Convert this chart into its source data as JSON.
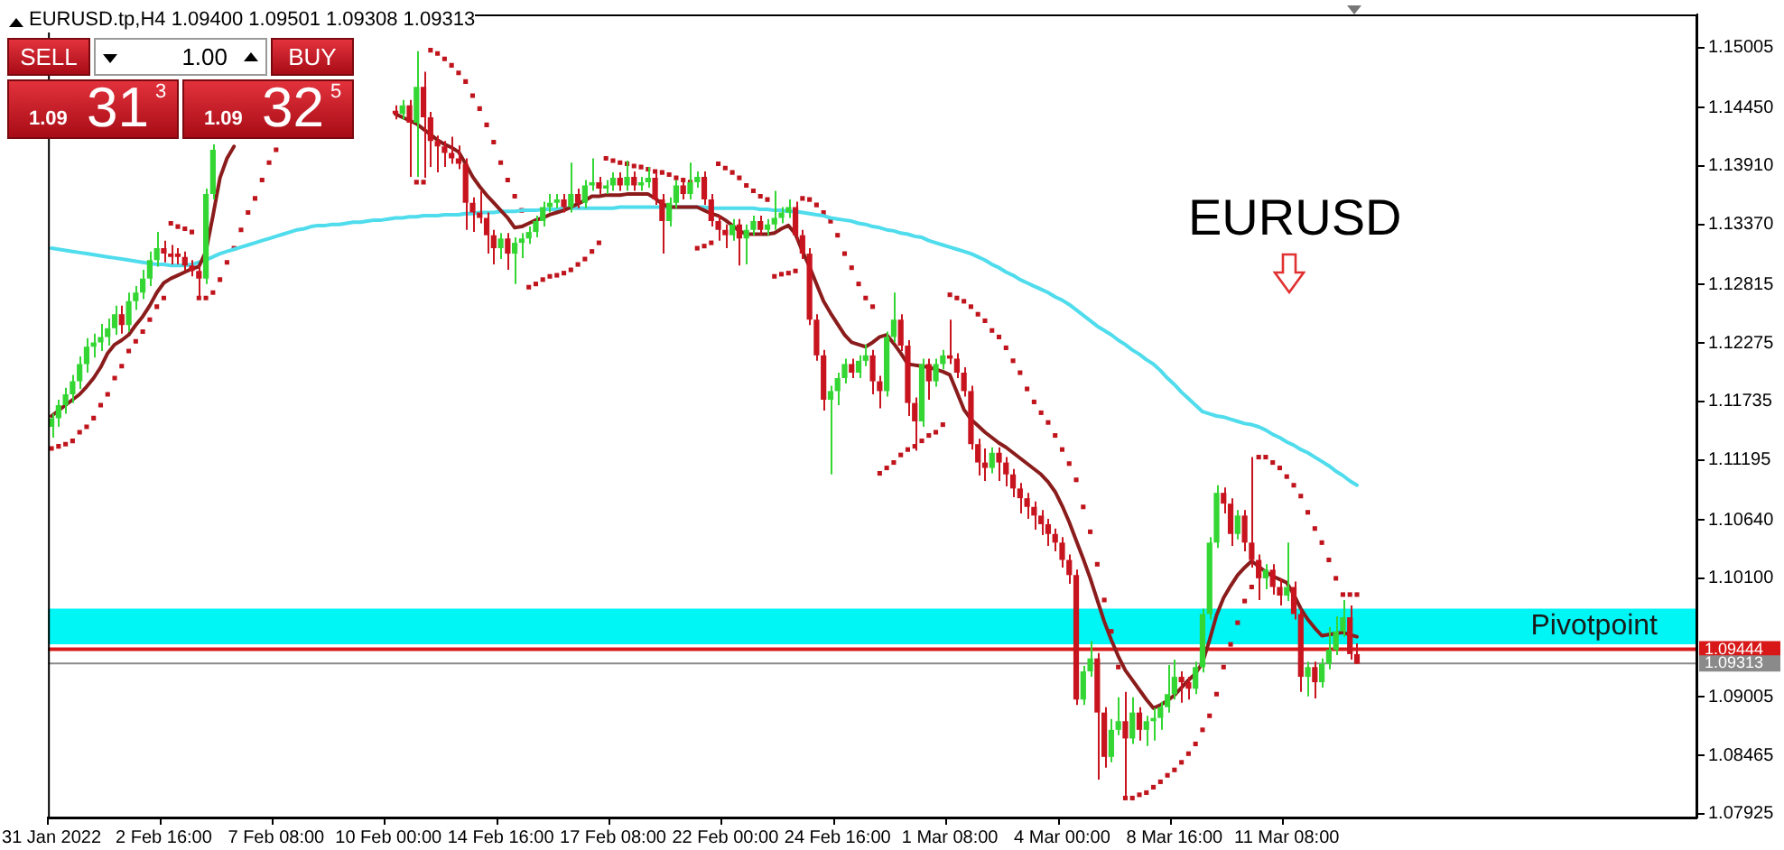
{
  "chart_data": {
    "type": "candlestick",
    "categories": [
      "31 Jan 2022",
      null,
      null,
      null,
      null,
      null,
      null,
      null,
      null,
      null,
      null,
      null,
      null,
      null,
      null,
      null,
      "2 Feb 16:00",
      null,
      null,
      null,
      null,
      null,
      null,
      null,
      null,
      null,
      null,
      null,
      null,
      null,
      null,
      null,
      "7 Feb 08:00",
      null,
      null,
      null,
      null,
      null,
      null,
      null,
      null,
      null,
      null,
      null,
      null,
      null,
      null,
      null,
      "10 Feb 00:00",
      null,
      null,
      null,
      null,
      null,
      null,
      null,
      null,
      null,
      null,
      null,
      null,
      null,
      null,
      null,
      "14 Feb 16:00",
      null,
      null,
      null,
      null,
      null,
      null,
      null,
      null,
      null,
      null,
      null,
      null,
      null,
      null,
      null,
      "17 Feb 08:00",
      null,
      null,
      null,
      null,
      null,
      null,
      null,
      null,
      null,
      null,
      null,
      null,
      null,
      null,
      null,
      "22 Feb 00:00",
      null,
      null,
      null,
      null,
      null,
      null,
      null,
      null,
      null,
      null,
      null,
      null,
      null,
      null,
      null,
      "24 Feb 16:00",
      null,
      null,
      null,
      null,
      null,
      null,
      null,
      null,
      null,
      null,
      null,
      null,
      null,
      null,
      null,
      "1 Mar 08:00",
      null,
      null,
      null,
      null,
      null,
      null,
      null,
      null,
      null,
      null,
      null,
      null,
      null,
      null,
      null,
      "4 Mar 00:00",
      null,
      null,
      null,
      null,
      null,
      null,
      null,
      null,
      null,
      null,
      null,
      null,
      null,
      null,
      null,
      "8 Mar 16:00",
      null,
      null,
      null,
      null,
      null,
      null,
      null,
      null,
      null,
      null,
      null,
      null,
      null,
      null,
      null,
      "11 Mar 08:00",
      null,
      null,
      null,
      null,
      null,
      null,
      null,
      null,
      null,
      null,
      null,
      null,
      null,
      null,
      null,
      null,
      null,
      null,
      null,
      null,
      null,
      null,
      null,
      null,
      null,
      null,
      null,
      null,
      null,
      null,
      null,
      null,
      null,
      null,
      null,
      null,
      null,
      null,
      null,
      null,
      null,
      null,
      null,
      null,
      null,
      null,
      null,
      null,
      null,
      null,
      null,
      null,
      null,
      null,
      null,
      null,
      null,
      null
    ],
    "ohlc": [
      [
        1.115,
        1.1162,
        1.114,
        1.1158
      ],
      [
        1.1158,
        1.1175,
        1.115,
        1.117
      ],
      [
        1.117,
        1.1186,
        1.1162,
        1.118
      ],
      [
        1.118,
        1.1198,
        1.1172,
        1.1192
      ],
      [
        1.1192,
        1.1215,
        1.1185,
        1.1208
      ],
      [
        1.1208,
        1.1232,
        1.12,
        1.1224
      ],
      [
        1.1224,
        1.1236,
        1.1214,
        1.1228
      ],
      [
        1.1228,
        1.1245,
        1.122,
        1.1233
      ],
      [
        1.1233,
        1.125,
        1.1225,
        1.1241
      ],
      [
        1.1241,
        1.1262,
        1.1235,
        1.1254
      ],
      [
        1.1254,
        1.1262,
        1.1236,
        1.1244
      ],
      [
        1.1244,
        1.1274,
        1.1238,
        1.1266
      ],
      [
        1.1266,
        1.128,
        1.1258,
        1.1274
      ],
      [
        1.1274,
        1.1295,
        1.1268,
        1.1287
      ],
      [
        1.1287,
        1.1312,
        1.128,
        1.1304
      ],
      [
        1.1304,
        1.133,
        1.1298,
        1.1315
      ],
      [
        1.1315,
        1.1322,
        1.1302,
        1.131
      ],
      [
        1.131,
        1.1318,
        1.13,
        1.1307
      ],
      [
        1.131,
        1.1315,
        1.13,
        1.1307
      ],
      [
        1.1307,
        1.1312,
        1.1294,
        1.1299
      ],
      [
        1.1299,
        1.1304,
        1.1289,
        1.1294
      ],
      [
        1.1294,
        1.1299,
        1.1269,
        1.1287
      ],
      [
        1.1287,
        1.137,
        1.1282,
        1.1365
      ],
      [
        1.1365,
        1.1411,
        1.136,
        1.1406
      ],
      null,
      null,
      null,
      null,
      null,
      null,
      null,
      null,
      null,
      null,
      null,
      null,
      null,
      null,
      null,
      null,
      null,
      null,
      null,
      null,
      null,
      null,
      null,
      null,
      null,
      [
        1.1442,
        1.1447,
        1.1434,
        1.1439
      ],
      [
        1.1439,
        1.1452,
        1.1434,
        1.1447
      ],
      [
        1.1447,
        1.1452,
        1.1381,
        1.1431
      ],
      [
        1.1431,
        1.1497,
        1.1381,
        1.1464
      ],
      [
        1.1464,
        1.1478,
        1.138,
        1.1436
      ],
      [
        1.1436,
        1.1441,
        1.139,
        1.1414
      ],
      [
        1.1414,
        1.1419,
        1.1385,
        1.1409
      ],
      [
        1.1409,
        1.1414,
        1.139,
        1.1403
      ],
      [
        1.1403,
        1.1418,
        1.1393,
        1.1398
      ],
      [
        1.1398,
        1.141,
        1.1388,
        1.1393
      ],
      [
        1.1393,
        1.1398,
        1.1332,
        1.1357
      ],
      [
        1.1357,
        1.1362,
        1.133,
        1.1348
      ],
      [
        1.1348,
        1.1368,
        1.1338,
        1.1343
      ],
      [
        1.1343,
        1.1348,
        1.131,
        1.1327
      ],
      [
        1.1327,
        1.1332,
        1.13,
        1.1315
      ],
      [
        1.1315,
        1.1329,
        1.1305,
        1.1324
      ],
      [
        1.1324,
        1.1329,
        1.1295,
        1.131
      ],
      [
        1.131,
        1.1325,
        1.1282,
        1.132
      ],
      [
        1.132,
        1.1329,
        1.1306,
        1.1324
      ],
      [
        1.1324,
        1.1335,
        1.1319,
        1.133
      ],
      [
        1.133,
        1.1345,
        1.1325,
        1.134
      ],
      [
        1.134,
        1.1358,
        1.1335,
        1.1353
      ],
      [
        1.1353,
        1.1365,
        1.1348,
        1.1357
      ],
      [
        1.1357,
        1.1365,
        1.1352,
        1.136
      ],
      [
        1.136,
        1.1365,
        1.1348,
        1.1353
      ],
      [
        1.1353,
        1.1394,
        1.1348,
        1.1365
      ],
      [
        1.1365,
        1.137,
        1.1352,
        1.1357
      ],
      [
        1.1357,
        1.1378,
        1.1352,
        1.1373
      ],
      [
        1.1373,
        1.1398,
        1.1368,
        1.1376
      ],
      [
        1.1376,
        1.1381,
        1.1365,
        1.137
      ],
      [
        1.137,
        1.1378,
        1.1365,
        1.1373
      ],
      [
        1.1373,
        1.1385,
        1.1368,
        1.138
      ],
      [
        1.138,
        1.1385,
        1.1368,
        1.1373
      ],
      [
        1.1373,
        1.1396,
        1.1368,
        1.1381
      ],
      [
        1.1381,
        1.1386,
        1.1368,
        1.1373
      ],
      [
        1.1373,
        1.1381,
        1.1368,
        1.1376
      ],
      [
        1.1376,
        1.139,
        1.1371,
        1.138
      ],
      [
        1.138,
        1.1385,
        1.1355,
        1.136
      ],
      [
        1.136,
        1.1365,
        1.131,
        1.134
      ],
      [
        1.134,
        1.1362,
        1.1335,
        1.1357
      ],
      [
        1.1357,
        1.1378,
        1.1352,
        1.1373
      ],
      [
        1.1373,
        1.1378,
        1.136,
        1.1365
      ],
      [
        1.1365,
        1.1394,
        1.136,
        1.1376
      ],
      [
        1.1376,
        1.1386,
        1.1371,
        1.1381
      ],
      [
        1.1381,
        1.1386,
        1.1355,
        1.136
      ],
      [
        1.136,
        1.1365,
        1.1335,
        1.134
      ],
      [
        1.134,
        1.1345,
        1.1322,
        1.1332
      ],
      [
        1.1332,
        1.1337,
        1.1315,
        1.1327
      ],
      [
        1.1327,
        1.1342,
        1.1322,
        1.1337
      ],
      [
        1.1337,
        1.1342,
        1.1299,
        1.1324
      ],
      [
        1.1324,
        1.1337,
        1.13,
        1.1332
      ],
      [
        1.1332,
        1.1345,
        1.1327,
        1.134
      ],
      [
        1.134,
        1.1345,
        1.1327,
        1.1332
      ],
      [
        1.1332,
        1.1342,
        1.1327,
        1.1337
      ],
      [
        1.1337,
        1.1368,
        1.1332,
        1.1343
      ],
      [
        1.1343,
        1.1353,
        1.1338,
        1.1348
      ],
      [
        1.1348,
        1.136,
        1.1343,
        1.1353
      ],
      [
        1.1353,
        1.1358,
        1.1322,
        1.1327
      ],
      [
        1.1327,
        1.1332,
        1.1305,
        1.131
      ],
      [
        1.131,
        1.1315,
        1.1244,
        1.1249
      ],
      [
        1.1249,
        1.1254,
        1.1211,
        1.1216
      ],
      [
        1.1216,
        1.1221,
        1.1165,
        1.1175
      ],
      [
        1.1175,
        1.1188,
        1.1106,
        1.1183
      ],
      [
        1.1183,
        1.12,
        1.117,
        1.1195
      ],
      [
        1.1195,
        1.1213,
        1.119,
        1.1208
      ],
      [
        1.1208,
        1.1213,
        1.1195,
        1.12
      ],
      [
        1.12,
        1.1216,
        1.1195,
        1.1211
      ],
      [
        1.1211,
        1.1226,
        1.1206,
        1.1216
      ],
      [
        1.1216,
        1.1221,
        1.118,
        1.1192
      ],
      [
        1.1192,
        1.1197,
        1.1167,
        1.1183
      ],
      [
        1.1183,
        1.1238,
        1.1178,
        1.1233
      ],
      [
        1.1233,
        1.1274,
        1.1228,
        1.1249
      ],
      [
        1.1249,
        1.1254,
        1.122,
        1.1225
      ],
      [
        1.1225,
        1.123,
        1.116,
        1.1172
      ],
      [
        1.1172,
        1.1177,
        1.1128,
        1.1155
      ],
      [
        1.1155,
        1.1213,
        1.115,
        1.1208
      ],
      [
        1.1208,
        1.1213,
        1.1175,
        1.1192
      ],
      [
        1.1192,
        1.1213,
        1.1187,
        1.1208
      ],
      [
        1.1208,
        1.1221,
        1.1203,
        1.1216
      ],
      [
        1.1216,
        1.1249,
        1.1208,
        1.1213
      ],
      [
        1.1213,
        1.1218,
        1.1195,
        1.12
      ],
      [
        1.12,
        1.1205,
        1.1178,
        1.1183
      ],
      [
        1.1183,
        1.1188,
        1.1129,
        1.1134
      ],
      [
        1.1134,
        1.1139,
        1.1105,
        1.1117
      ],
      [
        1.1117,
        1.113,
        1.11,
        1.1112
      ],
      [
        1.1112,
        1.1131,
        1.1107,
        1.1126
      ],
      [
        1.1126,
        1.1131,
        1.11,
        1.1117
      ],
      [
        1.1117,
        1.1122,
        1.1095,
        1.1106
      ],
      [
        1.1106,
        1.1111,
        1.1085,
        1.1093
      ],
      [
        1.1093,
        1.1098,
        1.107,
        1.1084
      ],
      [
        1.1084,
        1.1089,
        1.1065,
        1.1076
      ],
      [
        1.1076,
        1.1081,
        1.1055,
        1.1068
      ],
      [
        1.1068,
        1.1073,
        1.105,
        1.106
      ],
      [
        1.106,
        1.1065,
        1.104,
        1.1051
      ],
      [
        1.1051,
        1.1056,
        1.1035,
        1.1043
      ],
      [
        1.1043,
        1.1048,
        1.102,
        1.1027
      ],
      [
        1.1027,
        1.1032,
        1.1005,
        1.1013
      ],
      [
        1.1013,
        1.1018,
        1.0893,
        1.0898
      ],
      [
        1.0898,
        1.0929,
        1.0893,
        1.0924
      ],
      [
        1.0924,
        1.0952,
        1.0919,
        1.0936
      ],
      [
        1.0936,
        1.0941,
        1.0824,
        1.0886
      ],
      [
        1.0886,
        1.0891,
        1.0835,
        1.0845
      ],
      [
        1.0845,
        1.088,
        1.084,
        1.087
      ],
      [
        1.087,
        1.09,
        1.0865,
        1.0878
      ],
      [
        1.0878,
        1.0905,
        1.0807,
        1.0862
      ],
      [
        1.0862,
        1.09,
        1.0857,
        1.0886
      ],
      [
        1.0886,
        1.0891,
        1.086,
        1.087
      ],
      [
        1.087,
        1.0883,
        1.0855,
        1.0878
      ],
      [
        1.0878,
        1.089,
        1.086,
        1.0881
      ],
      [
        1.0881,
        1.0896,
        1.087,
        1.0891
      ],
      [
        1.0891,
        1.093,
        1.0886,
        1.0903
      ],
      [
        1.0903,
        1.0935,
        1.0898,
        1.0919
      ],
      [
        1.0919,
        1.0924,
        1.0895,
        1.0914
      ],
      [
        1.0914,
        1.0919,
        1.0898,
        1.0908
      ],
      [
        1.0908,
        1.0933,
        1.0903,
        1.0928
      ],
      [
        1.0928,
        1.0982,
        1.0923,
        1.0977
      ],
      [
        1.0977,
        1.1048,
        1.0972,
        1.1043
      ],
      [
        1.1043,
        1.1096,
        1.1038,
        1.1089
      ],
      [
        1.1089,
        1.1094,
        1.107,
        1.1079
      ],
      [
        1.1079,
        1.1084,
        1.104,
        1.1051
      ],
      [
        1.1051,
        1.1073,
        1.1046,
        1.1068
      ],
      [
        1.1068,
        1.1073,
        1.1035,
        1.1043
      ],
      [
        1.1043,
        1.1122,
        1.102,
        1.1027
      ],
      [
        1.1027,
        1.1032,
        1.099,
        1.101
      ],
      [
        1.101,
        1.1023,
        1.1,
        1.1018
      ],
      [
        1.1018,
        1.1023,
        1.0995,
        1.1002
      ],
      [
        1.1002,
        1.101,
        1.0985,
        1.0994
      ],
      [
        1.0994,
        1.1043,
        1.0989,
        1.1002
      ],
      [
        1.1002,
        1.1007,
        1.0972,
        1.0977
      ],
      [
        1.0977,
        1.0982,
        1.0905,
        1.0919
      ],
      [
        1.0919,
        1.0933,
        1.0901,
        1.0928
      ],
      [
        1.0928,
        1.0933,
        1.0899,
        1.0914
      ],
      [
        1.0914,
        1.0936,
        1.0909,
        1.0931
      ],
      [
        1.0931,
        1.0965,
        1.0926,
        1.0944
      ],
      [
        1.0944,
        1.0975,
        1.0939,
        1.0961
      ],
      [
        1.0961,
        1.099,
        1.0956,
        1.0974
      ],
      [
        1.0974,
        1.0985,
        1.0935,
        1.094
      ],
      [
        1.094,
        1.095,
        1.0931,
        1.0931
      ],
      null,
      null,
      null,
      null,
      null,
      null,
      null,
      null,
      null,
      null,
      null,
      null,
      null,
      null,
      null,
      null,
      null,
      null,
      null,
      null,
      null,
      null,
      null,
      null,
      null,
      null,
      null,
      null,
      null,
      null,
      null,
      null,
      null,
      null,
      null,
      null,
      null,
      null,
      null,
      null,
      null,
      null,
      null,
      null,
      null,
      null,
      null,
      null
    ],
    "series": [
      {
        "type": "line",
        "color": "#8b1c1c",
        "values": [
          1.116,
          1.1165,
          1.117,
          1.1175,
          1.118,
          1.1187,
          1.1195,
          1.1205,
          1.1218,
          1.1226,
          1.123,
          1.1235,
          1.1244,
          1.1252,
          1.1262,
          1.1274,
          1.1283,
          1.1287,
          1.129,
          1.1293,
          1.1296,
          1.1298,
          1.1312,
          1.1345,
          1.138,
          1.1398,
          1.1409,
          null,
          null,
          null,
          null,
          null,
          null,
          null,
          null,
          null,
          null,
          null,
          null,
          null,
          null,
          null,
          null,
          null,
          null,
          null,
          null,
          null,
          null,
          1.1439,
          1.1436,
          1.1433,
          1.143,
          1.1425,
          1.142,
          1.1415,
          1.1411,
          1.1408,
          1.1404,
          1.1393,
          1.1381,
          1.1372,
          1.1364,
          1.1357,
          1.135,
          1.1343,
          1.1334,
          1.1335,
          1.1338,
          1.1341,
          1.1343,
          1.1346,
          1.1348,
          1.135,
          1.1353,
          1.1356,
          1.1359,
          1.1363,
          1.1363,
          1.1364,
          1.1364,
          1.1364,
          1.1365,
          1.1365,
          1.1365,
          1.1365,
          1.1361,
          1.1356,
          1.1353,
          1.1353,
          1.1353,
          1.1353,
          1.1353,
          1.135,
          1.1347,
          1.1345,
          1.1341,
          1.1336,
          1.1331,
          1.1328,
          1.1328,
          1.1328,
          1.1328,
          1.1329,
          1.1333,
          1.1336,
          1.1328,
          1.1312,
          1.1298,
          1.1282,
          1.1266,
          1.1255,
          1.1245,
          1.1235,
          1.1228,
          1.1226,
          1.1224,
          1.1228,
          1.1233,
          1.1235,
          1.1227,
          1.1218,
          1.1208,
          1.1207,
          1.1206,
          1.1205,
          1.1203,
          1.1201,
          1.1198,
          1.1182,
          1.1166,
          1.1157,
          1.1151,
          1.1145,
          1.114,
          1.1135,
          1.1131,
          1.1126,
          1.1121,
          1.1116,
          1.1111,
          1.1106,
          1.1099,
          1.109,
          1.1077,
          1.1062,
          1.1045,
          1.1028,
          1.101,
          1.099,
          1.097,
          1.0953,
          1.0938,
          1.0925,
          1.0916,
          1.0907,
          1.0898,
          1.089,
          1.0893,
          1.0897,
          1.0902,
          1.0909,
          1.0916,
          1.0922,
          1.0932,
          1.0953,
          1.0976,
          1.0992,
          1.1003,
          1.1013,
          1.102,
          1.1026,
          1.1021,
          1.1016,
          1.1012,
          1.1009,
          1.1006,
          1.0995,
          1.0982,
          1.0972,
          1.0964,
          1.0957,
          1.0958,
          1.0959,
          1.096,
          1.0958,
          1.0956,
          null,
          null,
          null,
          null,
          null,
          null,
          null,
          null,
          null,
          null,
          null,
          null,
          null,
          null,
          null,
          null,
          null,
          null,
          null,
          null,
          null,
          null,
          null,
          null,
          null,
          null,
          null,
          null,
          null,
          null,
          null,
          null,
          null,
          null,
          null,
          null,
          null,
          null,
          null,
          null,
          null,
          null,
          null,
          null,
          null,
          null,
          null,
          null
        ]
      },
      {
        "type": "line",
        "color": "#4fdcec",
        "values": [
          1.1315,
          1.1314,
          1.1313,
          1.1312,
          1.1311,
          1.131,
          1.1309,
          1.1308,
          1.1307,
          1.1306,
          1.1305,
          1.1304,
          1.1303,
          1.1302,
          1.1301,
          1.13,
          1.13,
          1.1299,
          1.1299,
          1.1299,
          1.13,
          1.1302,
          1.1304,
          1.1307,
          1.131,
          1.1312,
          1.1314,
          1.1316,
          1.1318,
          1.132,
          1.1322,
          1.1324,
          1.1326,
          1.1328,
          1.133,
          1.1332,
          1.1333,
          1.1335,
          1.1336,
          1.1336,
          1.1337,
          1.1337,
          1.1338,
          1.1339,
          1.1339,
          1.134,
          1.1341,
          1.1341,
          1.1342,
          1.1343,
          1.1343,
          1.1344,
          1.1344,
          1.1345,
          1.1345,
          1.1345,
          1.1346,
          1.1346,
          1.1346,
          1.1347,
          1.1347,
          1.1348,
          1.1348,
          1.1348,
          1.1349,
          1.1349,
          1.1349,
          1.135,
          1.135,
          1.135,
          1.1351,
          1.1351,
          1.1351,
          1.1352,
          1.1352,
          1.1352,
          1.1352,
          1.1352,
          1.1352,
          1.1352,
          1.1352,
          1.1353,
          1.1353,
          1.1353,
          1.1353,
          1.1353,
          1.1353,
          1.1353,
          1.1353,
          1.1353,
          1.1353,
          1.1353,
          1.1353,
          1.1353,
          1.1352,
          1.1352,
          1.1352,
          1.1352,
          1.1352,
          1.1352,
          1.1352,
          1.1351,
          1.1351,
          1.135,
          1.135,
          1.1349,
          1.1349,
          1.1348,
          1.1347,
          1.1346,
          1.1345,
          1.1343,
          1.1342,
          1.1341,
          1.134,
          1.1338,
          1.1337,
          1.1335,
          1.1334,
          1.1332,
          1.1331,
          1.1329,
          1.1328,
          1.1326,
          1.1325,
          1.1322,
          1.132,
          1.1318,
          1.1316,
          1.1314,
          1.1312,
          1.131,
          1.1307,
          1.1304,
          1.13,
          1.1297,
          1.1293,
          1.129,
          1.1286,
          1.1283,
          1.128,
          1.1277,
          1.1274,
          1.127,
          1.1267,
          1.1263,
          1.1258,
          1.1253,
          1.1248,
          1.1243,
          1.1239,
          1.1235,
          1.123,
          1.1226,
          1.1221,
          1.1217,
          1.1212,
          1.1208,
          1.1202,
          1.1195,
          1.1189,
          1.1182,
          1.1176,
          1.117,
          1.1164,
          1.1162,
          1.116,
          1.1159,
          1.1157,
          1.1155,
          1.1153,
          1.1152,
          1.115,
          1.1147,
          1.1143,
          1.114,
          1.1136,
          1.1133,
          1.1129,
          1.1126,
          1.1122,
          1.1118,
          1.1114,
          1.1109,
          1.1105,
          1.11,
          1.1096,
          null,
          null,
          null,
          null,
          null,
          null,
          null,
          null,
          null,
          null,
          null,
          null,
          null,
          null,
          null,
          null,
          null,
          null,
          null,
          null,
          null,
          null,
          null,
          null,
          null,
          null,
          null,
          null,
          null,
          null,
          null,
          null,
          null,
          null,
          null,
          null,
          null,
          null,
          null,
          null,
          null,
          null,
          null,
          null,
          null,
          null,
          null,
          null
        ]
      },
      {
        "type": "scatter",
        "color": "#c0141c",
        "marker": "square",
        "values": [
          1.113,
          1.1132,
          1.1134,
          1.1137,
          1.1145,
          1.115,
          1.1158,
          1.117,
          1.118,
          1.1195,
          1.1206,
          1.122,
          1.1229,
          1.1238,
          1.1249,
          1.1261,
          1.1269,
          1.1338,
          1.1335,
          1.1333,
          1.133,
          1.1269,
          1.1269,
          1.1274,
          1.1286,
          1.1302,
          1.1315,
          1.1332,
          1.1348,
          1.1361,
          1.1378,
          1.1394,
          1.1406,
          null,
          null,
          null,
          null,
          null,
          null,
          null,
          null,
          null,
          null,
          null,
          null,
          null,
          null,
          null,
          null,
          null,
          null,
          null,
          1.1376,
          1.1376,
          1.1498,
          1.1495,
          1.149,
          1.1484,
          1.1477,
          1.1469,
          1.1456,
          1.1444,
          1.1429,
          1.1413,
          1.1394,
          1.1378,
          1.1363,
          1.135,
          1.1279,
          1.1282,
          1.1286,
          1.1289,
          1.129,
          1.1292,
          1.1295,
          1.13,
          1.1305,
          1.1312,
          1.132,
          1.1398,
          1.1396,
          1.1394,
          1.1393,
          1.1391,
          1.139,
          1.1388,
          1.1386,
          1.1385,
          1.1383,
          1.138,
          1.1378,
          1.1376,
          1.1315,
          1.1317,
          1.132,
          1.1393,
          1.1389,
          1.1385,
          1.138,
          1.1373,
          1.1368,
          1.1363,
          1.136,
          1.1289,
          1.1291,
          1.1292,
          1.1294,
          1.1361,
          1.136,
          1.1355,
          1.1348,
          1.134,
          1.1327,
          1.131,
          1.1297,
          1.1282,
          1.1269,
          1.1261,
          1.1107,
          1.1112,
          1.1117,
          1.1124,
          1.1129,
          1.1132,
          1.1137,
          1.1142,
          1.1145,
          1.1152,
          1.1272,
          1.1269,
          1.1266,
          1.1261,
          1.1254,
          1.1248,
          1.1239,
          1.1233,
          1.1223,
          1.1211,
          1.12,
          1.1185,
          1.1173,
          1.1163,
          1.1154,
          1.1142,
          1.1129,
          1.1116,
          1.1101,
          1.1076,
          1.1053,
          1.1023,
          1.099,
          1.0961,
          1.0928,
          1.0807,
          1.0807,
          1.081,
          1.0812,
          1.0817,
          1.0822,
          1.0828,
          1.0833,
          1.084,
          1.0848,
          1.0857,
          1.087,
          1.0883,
          1.0903,
          1.0928,
          1.0949,
          1.0969,
          1.0989,
          1.1002,
          1.1122,
          1.1122,
          1.1117,
          1.1112,
          1.1104,
          1.1096,
          1.1086,
          1.1071,
          1.1056,
          1.1043,
          1.1027,
          1.101,
          1.0995,
          1.0995,
          1.0995,
          null,
          null,
          null,
          null,
          null,
          null,
          null,
          null,
          null,
          null,
          null,
          null,
          null,
          null,
          null,
          null,
          null,
          null,
          null,
          null,
          null,
          null,
          null,
          null,
          null,
          null,
          null,
          null,
          null,
          null,
          null,
          null,
          null,
          null,
          null,
          null,
          null,
          null,
          null,
          null,
          null,
          null,
          null,
          null,
          null,
          null,
          null,
          null
        ]
      }
    ],
    "ylim": [
      1.0789,
      1.1531
    ],
    "yticks": [
      {
        "value": 1.15005,
        "label": "1.15005"
      },
      {
        "value": 1.1445,
        "label": "1.14450"
      },
      {
        "value": 1.1391,
        "label": "1.13910"
      },
      {
        "value": 1.1337,
        "label": "1.13370"
      },
      {
        "value": 1.12815,
        "label": "1.12815"
      },
      {
        "value": 1.12275,
        "label": "1.12275"
      },
      {
        "value": 1.11735,
        "label": "1.11735"
      },
      {
        "value": 1.11195,
        "label": "1.11195"
      },
      {
        "value": 1.1064,
        "label": "1.10640"
      },
      {
        "value": 1.101,
        "label": "1.10100"
      },
      {
        "value": 1.09005,
        "label": "1.09005"
      },
      {
        "value": 1.08465,
        "label": "1.08465"
      },
      {
        "value": 1.07925,
        "label": "1.07925"
      }
    ],
    "bands": [
      {
        "axis": "y",
        "from": 1.0949,
        "to": 1.0982,
        "label": "Pivotpoint",
        "color": "#00f5f5"
      }
    ],
    "ref_lines": [
      {
        "axis": "y",
        "value": 1.09444,
        "label": "1.09444",
        "color": "#d81818"
      },
      {
        "axis": "y",
        "value": 1.09313,
        "label": "1.09313",
        "color": "#8a8a8a"
      }
    ],
    "annotations": [
      "EURUSD.tp,H4  1.09400 1.09501 1.09308 1.09313",
      "EURUSD",
      "SELL",
      "1.00",
      "BUY",
      "1.09",
      "31",
      "3",
      "1.09",
      "32",
      "5"
    ],
    "legend": false
  }
}
